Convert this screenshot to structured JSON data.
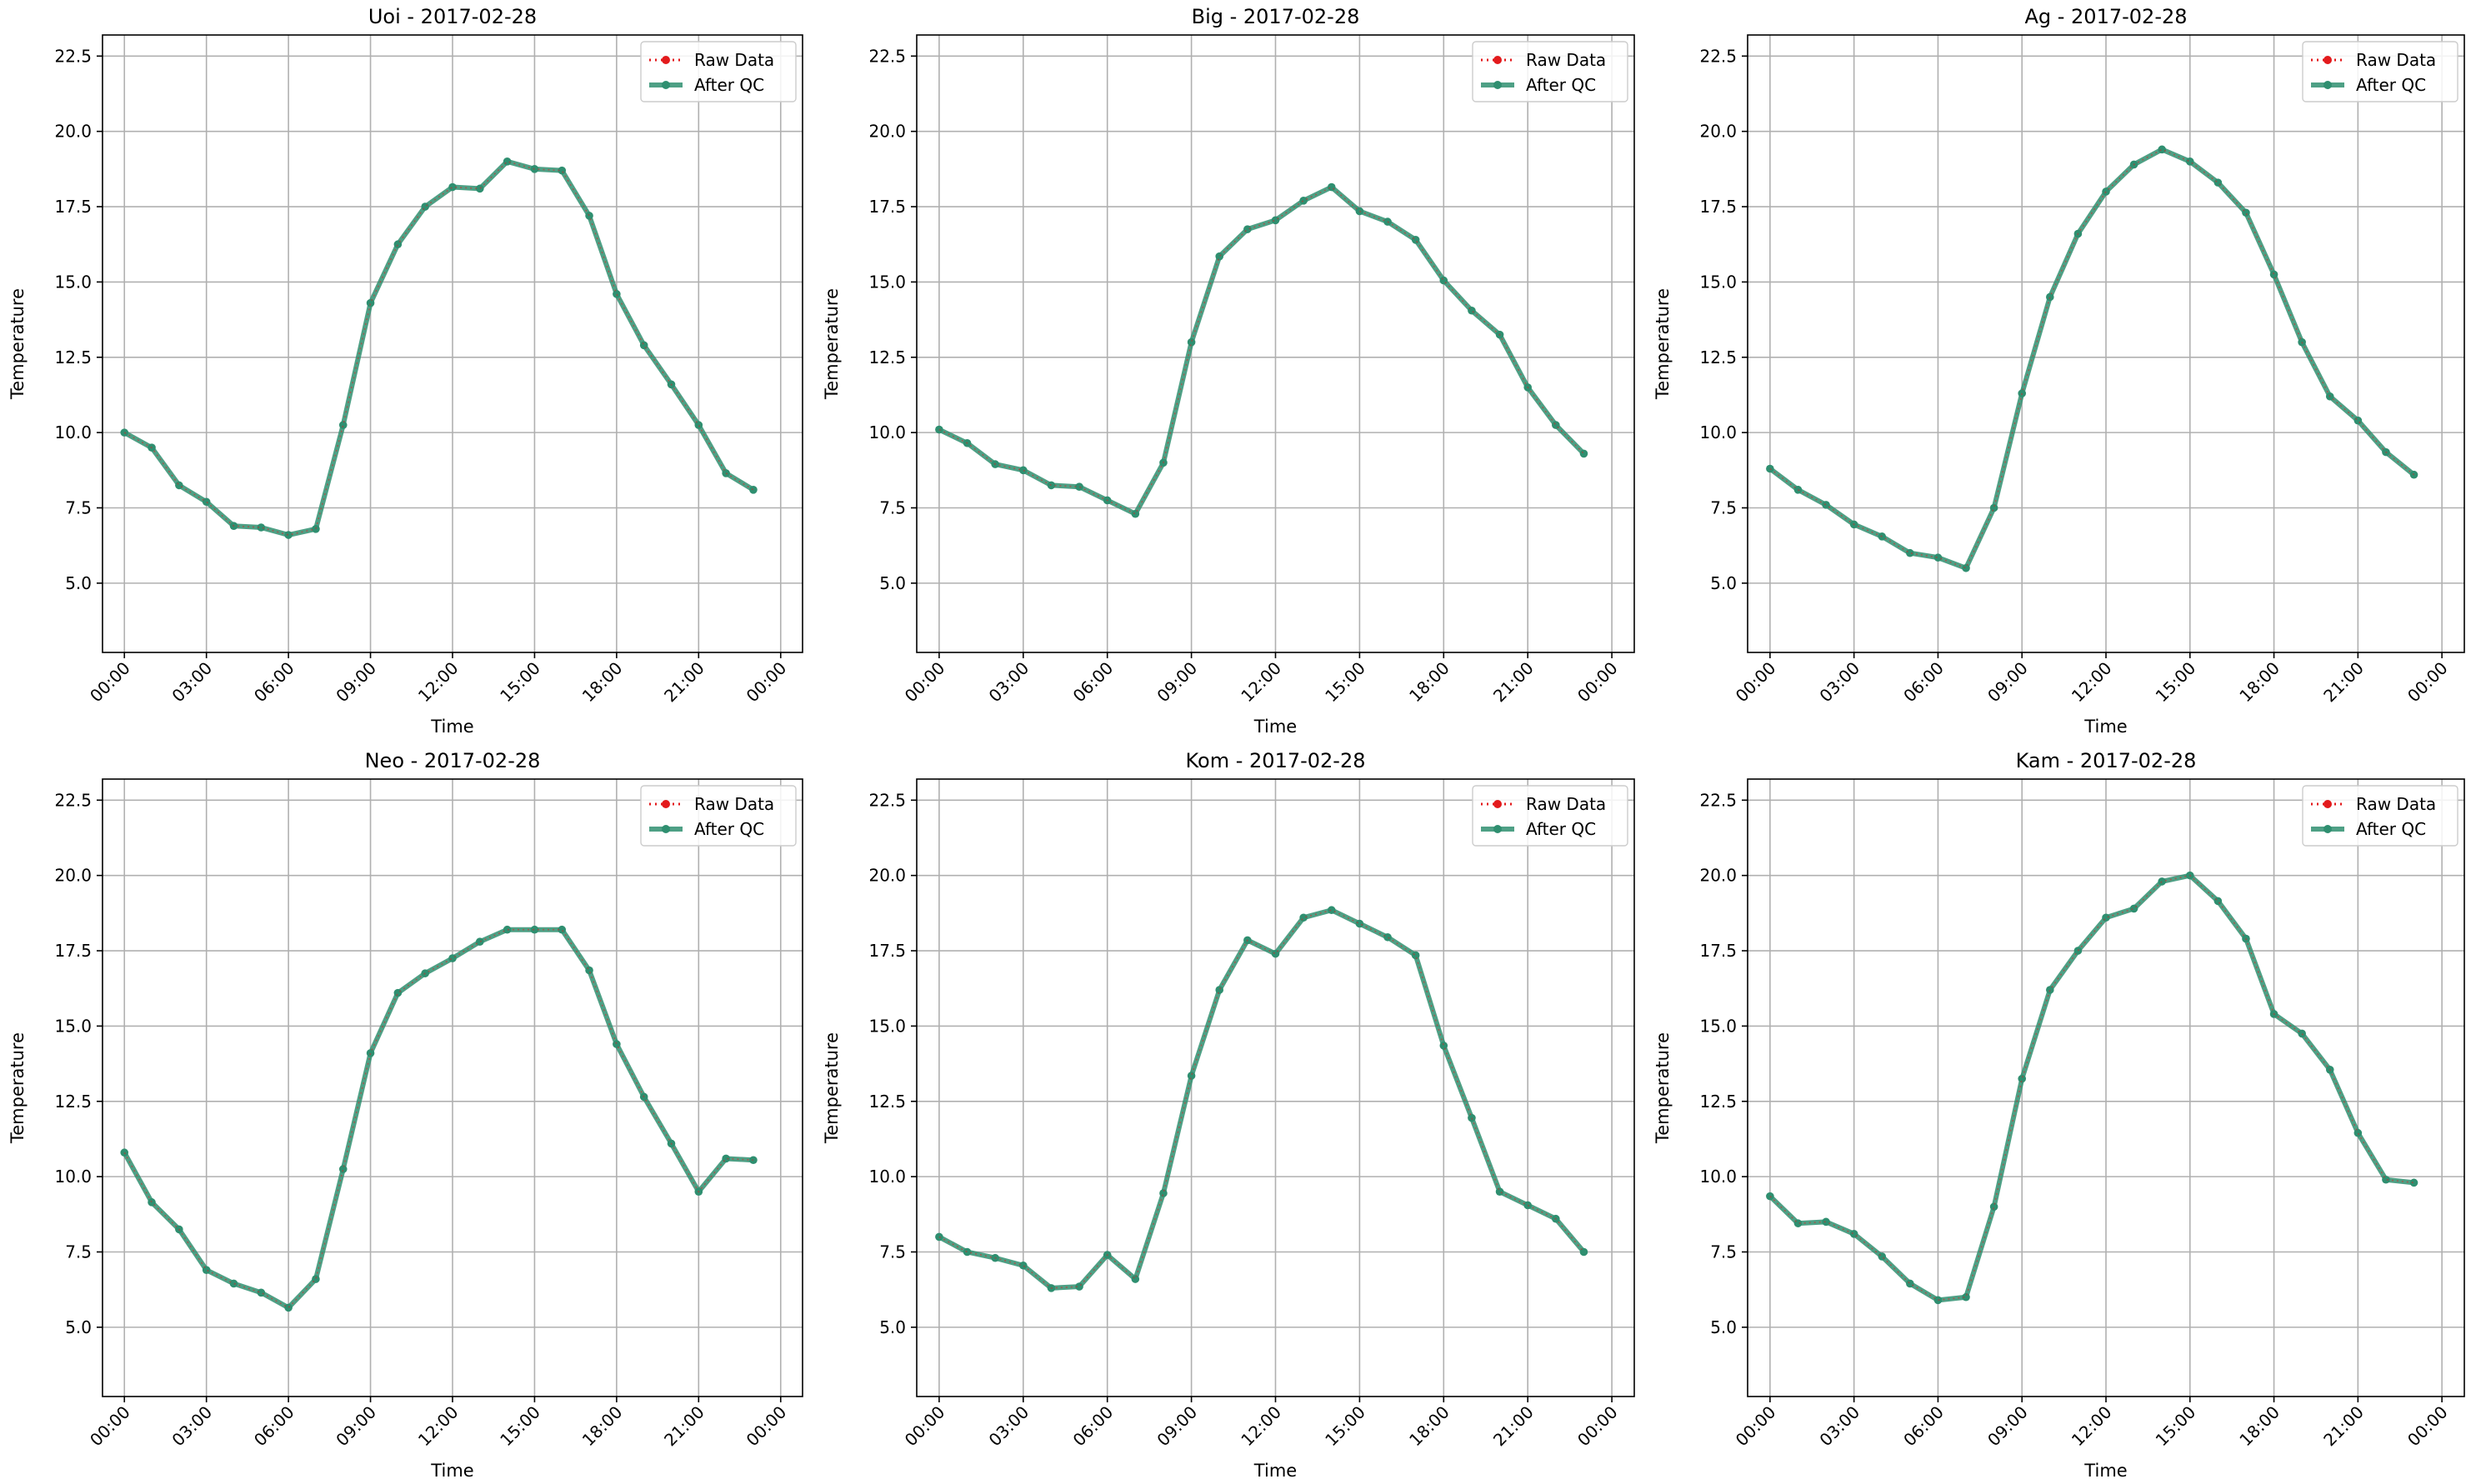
{
  "figure": {
    "raw_legend": "Raw Data",
    "qc_legend": "After QC",
    "xlabel": "Time",
    "ylabel": "Temperature",
    "colors": {
      "raw": "#e31a1c",
      "qc": "#2f8f70",
      "grid": "#b0b0b0",
      "axis": "#000000"
    }
  },
  "chart_data": [
    {
      "type": "line",
      "title": "Uoi - 2017-02-28",
      "xlabel": "Time",
      "ylabel": "Temperature",
      "x": [
        "00:00",
        "01:00",
        "02:00",
        "03:00",
        "04:00",
        "05:00",
        "06:00",
        "07:00",
        "08:00",
        "09:00",
        "10:00",
        "11:00",
        "12:00",
        "13:00",
        "14:00",
        "15:00",
        "16:00",
        "17:00",
        "18:00",
        "19:00",
        "20:00",
        "21:00",
        "22:00",
        "23:00"
      ],
      "xticks": [
        "00:00",
        "03:00",
        "06:00",
        "09:00",
        "12:00",
        "15:00",
        "18:00",
        "21:00",
        "00:00"
      ],
      "yticks": [
        "5.0",
        "7.5",
        "10.0",
        "12.5",
        "15.0",
        "17.5",
        "20.0",
        "22.5"
      ],
      "ylim": [
        2.7,
        23.2
      ],
      "grid": true,
      "legend": "top-right",
      "series": [
        {
          "name": "Raw Data",
          "values": [
            10.0,
            9.5,
            8.25,
            7.7,
            6.9,
            6.85,
            6.6,
            6.8,
            10.25,
            14.3,
            16.25,
            17.5,
            18.15,
            18.1,
            19.0,
            18.75,
            18.7,
            17.2,
            14.6,
            12.9,
            11.6,
            10.25,
            8.65,
            8.1
          ]
        },
        {
          "name": "After QC",
          "values": [
            10.0,
            9.5,
            8.25,
            7.7,
            6.9,
            6.85,
            6.6,
            6.8,
            10.25,
            14.3,
            16.25,
            17.5,
            18.15,
            18.1,
            19.0,
            18.75,
            18.7,
            17.2,
            14.6,
            12.9,
            11.6,
            10.25,
            8.65,
            8.1
          ]
        }
      ]
    },
    {
      "type": "line",
      "title": "Big - 2017-02-28",
      "xlabel": "Time",
      "ylabel": "Temperature",
      "x": [
        "00:00",
        "01:00",
        "02:00",
        "03:00",
        "04:00",
        "05:00",
        "06:00",
        "07:00",
        "08:00",
        "09:00",
        "10:00",
        "11:00",
        "12:00",
        "13:00",
        "14:00",
        "15:00",
        "16:00",
        "17:00",
        "18:00",
        "19:00",
        "20:00",
        "21:00",
        "22:00",
        "23:00"
      ],
      "xticks": [
        "00:00",
        "03:00",
        "06:00",
        "09:00",
        "12:00",
        "15:00",
        "18:00",
        "21:00",
        "00:00"
      ],
      "yticks": [
        "5.0",
        "7.5",
        "10.0",
        "12.5",
        "15.0",
        "17.5",
        "20.0",
        "22.5"
      ],
      "ylim": [
        2.7,
        23.2
      ],
      "grid": true,
      "legend": "top-right",
      "series": [
        {
          "name": "Raw Data",
          "values": [
            10.1,
            9.65,
            8.95,
            8.75,
            8.25,
            8.2,
            7.75,
            7.3,
            9.0,
            13.0,
            15.85,
            16.75,
            17.05,
            17.7,
            18.15,
            17.35,
            17.0,
            16.4,
            15.05,
            14.05,
            13.25,
            11.5,
            10.25,
            9.3
          ]
        },
        {
          "name": "After QC",
          "values": [
            10.1,
            9.65,
            8.95,
            8.75,
            8.25,
            8.2,
            7.75,
            7.3,
            9.0,
            13.0,
            15.85,
            16.75,
            17.05,
            17.7,
            18.15,
            17.35,
            17.0,
            16.4,
            15.05,
            14.05,
            13.25,
            11.5,
            10.25,
            9.3
          ]
        }
      ]
    },
    {
      "type": "line",
      "title": "Ag - 2017-02-28",
      "xlabel": "Time",
      "ylabel": "Temperature",
      "x": [
        "00:00",
        "01:00",
        "02:00",
        "03:00",
        "04:00",
        "05:00",
        "06:00",
        "07:00",
        "08:00",
        "09:00",
        "10:00",
        "11:00",
        "12:00",
        "13:00",
        "14:00",
        "15:00",
        "16:00",
        "17:00",
        "18:00",
        "19:00",
        "20:00",
        "21:00",
        "22:00",
        "23:00"
      ],
      "xticks": [
        "00:00",
        "03:00",
        "06:00",
        "09:00",
        "12:00",
        "15:00",
        "18:00",
        "21:00",
        "00:00"
      ],
      "yticks": [
        "5.0",
        "7.5",
        "10.0",
        "12.5",
        "15.0",
        "17.5",
        "20.0",
        "22.5"
      ],
      "ylim": [
        2.7,
        23.2
      ],
      "grid": true,
      "legend": "top-right",
      "series": [
        {
          "name": "Raw Data",
          "values": [
            8.8,
            8.1,
            7.6,
            6.95,
            6.55,
            6.0,
            5.85,
            5.5,
            7.5,
            11.3,
            14.5,
            16.6,
            18.0,
            18.9,
            19.4,
            19.0,
            18.3,
            17.3,
            15.25,
            13.0,
            11.2,
            10.4,
            9.35,
            8.6
          ]
        },
        {
          "name": "After QC",
          "values": [
            8.8,
            8.1,
            7.6,
            6.95,
            6.55,
            6.0,
            5.85,
            5.5,
            7.5,
            11.3,
            14.5,
            16.6,
            18.0,
            18.9,
            19.4,
            19.0,
            18.3,
            17.3,
            15.25,
            13.0,
            11.2,
            10.4,
            9.35,
            8.6
          ]
        }
      ]
    },
    {
      "type": "line",
      "title": "Neo - 2017-02-28",
      "xlabel": "Time",
      "ylabel": "Temperature",
      "x": [
        "00:00",
        "01:00",
        "02:00",
        "03:00",
        "04:00",
        "05:00",
        "06:00",
        "07:00",
        "08:00",
        "09:00",
        "10:00",
        "11:00",
        "12:00",
        "13:00",
        "14:00",
        "15:00",
        "16:00",
        "17:00",
        "18:00",
        "19:00",
        "20:00",
        "21:00",
        "22:00",
        "23:00"
      ],
      "xticks": [
        "00:00",
        "03:00",
        "06:00",
        "09:00",
        "12:00",
        "15:00",
        "18:00",
        "21:00",
        "00:00"
      ],
      "yticks": [
        "5.0",
        "7.5",
        "10.0",
        "12.5",
        "15.0",
        "17.5",
        "20.0",
        "22.5"
      ],
      "ylim": [
        2.7,
        23.2
      ],
      "grid": true,
      "legend": "top-right",
      "series": [
        {
          "name": "Raw Data",
          "values": [
            10.8,
            9.15,
            8.25,
            6.9,
            6.45,
            6.15,
            5.65,
            6.6,
            10.25,
            14.1,
            16.1,
            16.75,
            17.25,
            17.8,
            18.2,
            18.2,
            18.2,
            16.85,
            14.4,
            12.65,
            11.1,
            9.5,
            10.6,
            10.55
          ]
        },
        {
          "name": "After QC",
          "values": [
            10.8,
            9.15,
            8.25,
            6.9,
            6.45,
            6.15,
            5.65,
            6.6,
            10.25,
            14.1,
            16.1,
            16.75,
            17.25,
            17.8,
            18.2,
            18.2,
            18.2,
            16.85,
            14.4,
            12.65,
            11.1,
            9.5,
            10.6,
            10.55
          ]
        }
      ]
    },
    {
      "type": "line",
      "title": "Kom - 2017-02-28",
      "xlabel": "Time",
      "ylabel": "Temperature",
      "x": [
        "00:00",
        "01:00",
        "02:00",
        "03:00",
        "04:00",
        "05:00",
        "06:00",
        "07:00",
        "08:00",
        "09:00",
        "10:00",
        "11:00",
        "12:00",
        "13:00",
        "14:00",
        "15:00",
        "16:00",
        "17:00",
        "18:00",
        "19:00",
        "20:00",
        "21:00",
        "22:00",
        "23:00"
      ],
      "xticks": [
        "00:00",
        "03:00",
        "06:00",
        "09:00",
        "12:00",
        "15:00",
        "18:00",
        "21:00",
        "00:00"
      ],
      "yticks": [
        "5.0",
        "7.5",
        "10.0",
        "12.5",
        "15.0",
        "17.5",
        "20.0",
        "22.5"
      ],
      "ylim": [
        2.7,
        23.2
      ],
      "grid": true,
      "legend": "top-right",
      "series": [
        {
          "name": "Raw Data",
          "values": [
            8.0,
            7.5,
            7.3,
            7.05,
            6.3,
            6.35,
            7.4,
            6.6,
            9.45,
            13.35,
            16.2,
            17.85,
            17.4,
            18.6,
            18.85,
            18.4,
            17.95,
            17.35,
            14.35,
            11.95,
            9.5,
            9.05,
            8.6,
            7.5
          ]
        },
        {
          "name": "After QC",
          "values": [
            8.0,
            7.5,
            7.3,
            7.05,
            6.3,
            6.35,
            7.4,
            6.6,
            9.45,
            13.35,
            16.2,
            17.85,
            17.4,
            18.6,
            18.85,
            18.4,
            17.95,
            17.35,
            14.35,
            11.95,
            9.5,
            9.05,
            8.6,
            7.5
          ]
        }
      ]
    },
    {
      "type": "line",
      "title": "Kam - 2017-02-28",
      "xlabel": "Time",
      "ylabel": "Temperature",
      "x": [
        "00:00",
        "01:00",
        "02:00",
        "03:00",
        "04:00",
        "05:00",
        "06:00",
        "07:00",
        "08:00",
        "09:00",
        "10:00",
        "11:00",
        "12:00",
        "13:00",
        "14:00",
        "15:00",
        "16:00",
        "17:00",
        "18:00",
        "19:00",
        "20:00",
        "21:00",
        "22:00",
        "23:00"
      ],
      "xticks": [
        "00:00",
        "03:00",
        "06:00",
        "09:00",
        "12:00",
        "15:00",
        "18:00",
        "21:00",
        "00:00"
      ],
      "yticks": [
        "5.0",
        "7.5",
        "10.0",
        "12.5",
        "15.0",
        "17.5",
        "20.0",
        "22.5"
      ],
      "ylim": [
        2.7,
        23.2
      ],
      "grid": true,
      "legend": "top-right",
      "series": [
        {
          "name": "Raw Data",
          "values": [
            9.35,
            8.45,
            8.5,
            8.1,
            7.35,
            6.45,
            5.9,
            6.0,
            9.0,
            13.25,
            16.2,
            17.5,
            18.6,
            18.9,
            19.8,
            20.0,
            19.15,
            17.9,
            15.4,
            14.75,
            13.55,
            11.45,
            9.9,
            9.8
          ]
        },
        {
          "name": "After QC",
          "values": [
            9.35,
            8.45,
            8.5,
            8.1,
            7.35,
            6.45,
            5.9,
            6.0,
            9.0,
            13.25,
            16.2,
            17.5,
            18.6,
            18.9,
            19.8,
            20.0,
            19.15,
            17.9,
            15.4,
            14.75,
            13.55,
            11.45,
            9.9,
            9.8
          ]
        }
      ]
    }
  ]
}
